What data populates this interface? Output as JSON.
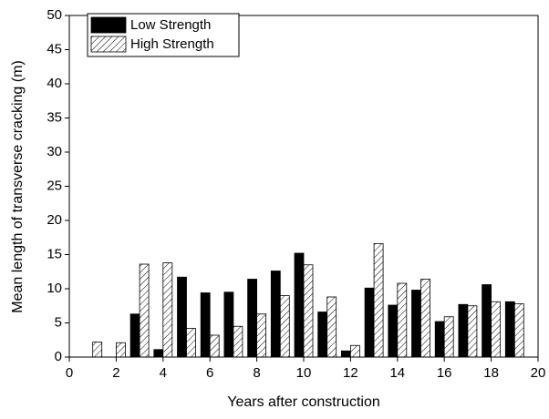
{
  "chart_data": {
    "type": "bar",
    "xlabel": "Years after construction",
    "ylabel": "Mean length of transverse cracking (m)",
    "x": [
      1,
      2,
      3,
      4,
      5,
      6,
      7,
      8,
      9,
      10,
      11,
      12,
      13,
      14,
      15,
      16,
      17,
      18,
      19
    ],
    "series": [
      {
        "name": "Low Strength",
        "color": "#000000",
        "pattern": "solid",
        "values": [
          0,
          0,
          6.3,
          1.1,
          11.7,
          9.4,
          9.5,
          11.4,
          12.6,
          15.2,
          6.6,
          0.9,
          10.1,
          7.6,
          9.8,
          5.2,
          7.7,
          10.6,
          8.1
        ]
      },
      {
        "name": "High Strength",
        "color": "#000000",
        "pattern": "hatch",
        "values": [
          2.2,
          2.1,
          13.6,
          13.8,
          4.2,
          3.2,
          4.5,
          6.3,
          9.0,
          13.5,
          8.8,
          1.7,
          16.6,
          10.8,
          11.4,
          5.9,
          7.5,
          8.1,
          7.8
        ]
      }
    ],
    "xlim": [
      0,
      20
    ],
    "xticks": [
      0,
      2,
      4,
      6,
      8,
      10,
      12,
      14,
      16,
      18,
      20
    ],
    "ylim": [
      0,
      50
    ],
    "yticks": [
      0,
      5,
      10,
      15,
      20,
      25,
      30,
      35,
      40,
      45,
      50
    ],
    "grid": false,
    "legend": "top-left"
  }
}
